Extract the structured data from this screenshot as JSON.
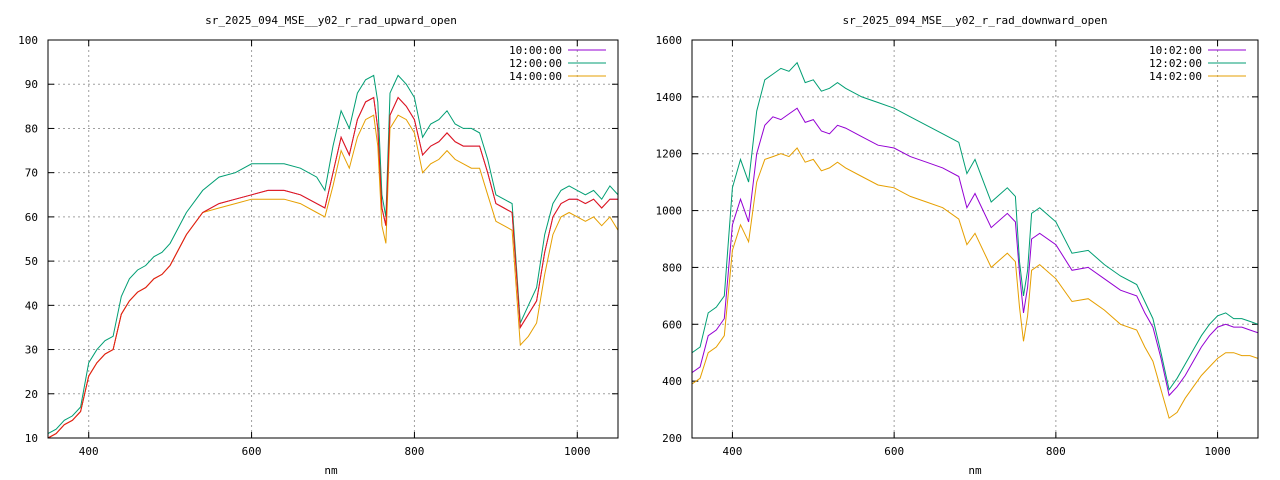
{
  "chart_data": [
    {
      "type": "line",
      "title": "sr_2025_094_MSE__y02_r_rad_upward_open",
      "xlabel": "nm",
      "ylabel": "",
      "xlim": [
        350,
        1050
      ],
      "ylim": [
        10,
        100
      ],
      "xticks": [
        400,
        600,
        800,
        1000
      ],
      "yticks": [
        10,
        20,
        30,
        40,
        50,
        60,
        70,
        80,
        90,
        100
      ],
      "grid": true,
      "legend": "top-right",
      "x": [
        350,
        360,
        370,
        380,
        390,
        400,
        410,
        420,
        430,
        440,
        450,
        460,
        470,
        480,
        490,
        500,
        520,
        540,
        560,
        580,
        600,
        620,
        640,
        660,
        680,
        690,
        700,
        710,
        720,
        730,
        740,
        750,
        755,
        760,
        765,
        770,
        780,
        790,
        800,
        810,
        820,
        830,
        840,
        850,
        860,
        870,
        880,
        890,
        900,
        910,
        920,
        930,
        940,
        950,
        960,
        970,
        980,
        990,
        1000,
        1010,
        1020,
        1030,
        1040,
        1050
      ],
      "series": [
        {
          "name": "10:00:00",
          "color": "#9400d3",
          "values": [
            10,
            11,
            13,
            14,
            16,
            24,
            27,
            29,
            30,
            38,
            41,
            43,
            44,
            46,
            47,
            49,
            56,
            61,
            63,
            64,
            65,
            66,
            66,
            65,
            63,
            62,
            70,
            78,
            74,
            82,
            86,
            87,
            80,
            62,
            58,
            83,
            87,
            85,
            82,
            74,
            76,
            77,
            79,
            77,
            76,
            76,
            76,
            70,
            63,
            62,
            61,
            35,
            38,
            41,
            52,
            60,
            63,
            64,
            64,
            63,
            64,
            62,
            64,
            64
          ]
        },
        {
          "name": "12:00:00",
          "color": "#009e73",
          "values": [
            11,
            12,
            14,
            15,
            17,
            27,
            30,
            32,
            33,
            42,
            46,
            48,
            49,
            51,
            52,
            54,
            61,
            66,
            69,
            70,
            72,
            72,
            72,
            71,
            69,
            66,
            76,
            84,
            80,
            88,
            91,
            92,
            86,
            65,
            60,
            88,
            92,
            90,
            87,
            78,
            81,
            82,
            84,
            81,
            80,
            80,
            79,
            73,
            65,
            64,
            63,
            36,
            40,
            44,
            56,
            63,
            66,
            67,
            66,
            65,
            66,
            64,
            67,
            65
          ]
        },
        {
          "name": "14:00:00",
          "color": "#e69f00",
          "values": [
            10,
            11,
            13,
            14,
            16,
            24,
            27,
            29,
            30,
            38,
            41,
            43,
            44,
            46,
            47,
            49,
            56,
            61,
            62,
            63,
            64,
            64,
            64,
            63,
            61,
            60,
            67,
            75,
            71,
            78,
            82,
            83,
            76,
            58,
            54,
            80,
            83,
            82,
            79,
            70,
            72,
            73,
            75,
            73,
            72,
            71,
            71,
            65,
            59,
            58,
            57,
            31,
            33,
            36,
            47,
            56,
            60,
            61,
            60,
            59,
            60,
            58,
            60,
            57
          ]
        },
        {
          "name": "",
          "color": "#e51e10",
          "values": [
            10,
            11,
            13,
            14,
            16,
            24,
            27,
            29,
            30,
            38,
            41,
            43,
            44,
            46,
            47,
            49,
            56,
            61,
            63,
            64,
            65,
            66,
            66,
            65,
            63,
            62,
            70,
            78,
            74,
            82,
            86,
            87,
            80,
            62,
            58,
            83,
            87,
            85,
            82,
            74,
            76,
            77,
            79,
            77,
            76,
            76,
            76,
            70,
            63,
            62,
            61,
            35,
            38,
            41,
            52,
            60,
            63,
            64,
            64,
            63,
            64,
            62,
            64,
            64
          ]
        }
      ]
    },
    {
      "type": "line",
      "title": "sr_2025_094_MSE__y02_r_rad_downward_open",
      "xlabel": "nm",
      "ylabel": "",
      "xlim": [
        350,
        1050
      ],
      "ylim": [
        200,
        1600
      ],
      "xticks": [
        400,
        600,
        800,
        1000
      ],
      "yticks": [
        200,
        400,
        600,
        800,
        1000,
        1200,
        1400,
        1600
      ],
      "grid": true,
      "legend": "top-right",
      "x": [
        350,
        360,
        370,
        380,
        390,
        400,
        410,
        420,
        430,
        440,
        450,
        460,
        470,
        480,
        490,
        500,
        510,
        520,
        530,
        540,
        560,
        580,
        600,
        620,
        640,
        660,
        680,
        690,
        700,
        720,
        740,
        750,
        755,
        760,
        765,
        770,
        780,
        800,
        820,
        840,
        860,
        880,
        900,
        910,
        920,
        930,
        940,
        950,
        960,
        970,
        980,
        990,
        1000,
        1010,
        1020,
        1030,
        1040,
        1050
      ],
      "series": [
        {
          "name": "10:02:00",
          "color": "#9400d3",
          "values": [
            430,
            450,
            560,
            580,
            620,
            950,
            1040,
            960,
            1200,
            1300,
            1330,
            1320,
            1340,
            1360,
            1310,
            1320,
            1280,
            1270,
            1300,
            1290,
            1260,
            1230,
            1220,
            1190,
            1170,
            1150,
            1120,
            1010,
            1060,
            940,
            990,
            960,
            780,
            640,
            730,
            900,
            920,
            880,
            790,
            800,
            760,
            720,
            700,
            640,
            590,
            480,
            350,
            380,
            420,
            470,
            520,
            560,
            590,
            600,
            590,
            590,
            580,
            570
          ]
        },
        {
          "name": "12:02:00",
          "color": "#009e73",
          "values": [
            500,
            520,
            640,
            660,
            700,
            1080,
            1180,
            1100,
            1350,
            1460,
            1480,
            1500,
            1490,
            1520,
            1450,
            1460,
            1420,
            1430,
            1450,
            1430,
            1400,
            1380,
            1360,
            1330,
            1300,
            1270,
            1240,
            1130,
            1180,
            1030,
            1080,
            1050,
            820,
            700,
            790,
            990,
            1010,
            960,
            850,
            860,
            810,
            770,
            740,
            680,
            620,
            500,
            370,
            410,
            460,
            510,
            560,
            600,
            630,
            640,
            620,
            620,
            610,
            600
          ]
        },
        {
          "name": "14:02:00",
          "color": "#e69f00",
          "values": [
            390,
            410,
            500,
            520,
            560,
            860,
            950,
            890,
            1100,
            1180,
            1190,
            1200,
            1190,
            1220,
            1170,
            1180,
            1140,
            1150,
            1170,
            1150,
            1120,
            1090,
            1080,
            1050,
            1030,
            1010,
            970,
            880,
            920,
            800,
            850,
            820,
            660,
            540,
            630,
            790,
            810,
            760,
            680,
            690,
            650,
            600,
            580,
            520,
            470,
            370,
            270,
            290,
            340,
            380,
            420,
            450,
            480,
            500,
            500,
            490,
            490,
            480
          ]
        }
      ]
    }
  ]
}
